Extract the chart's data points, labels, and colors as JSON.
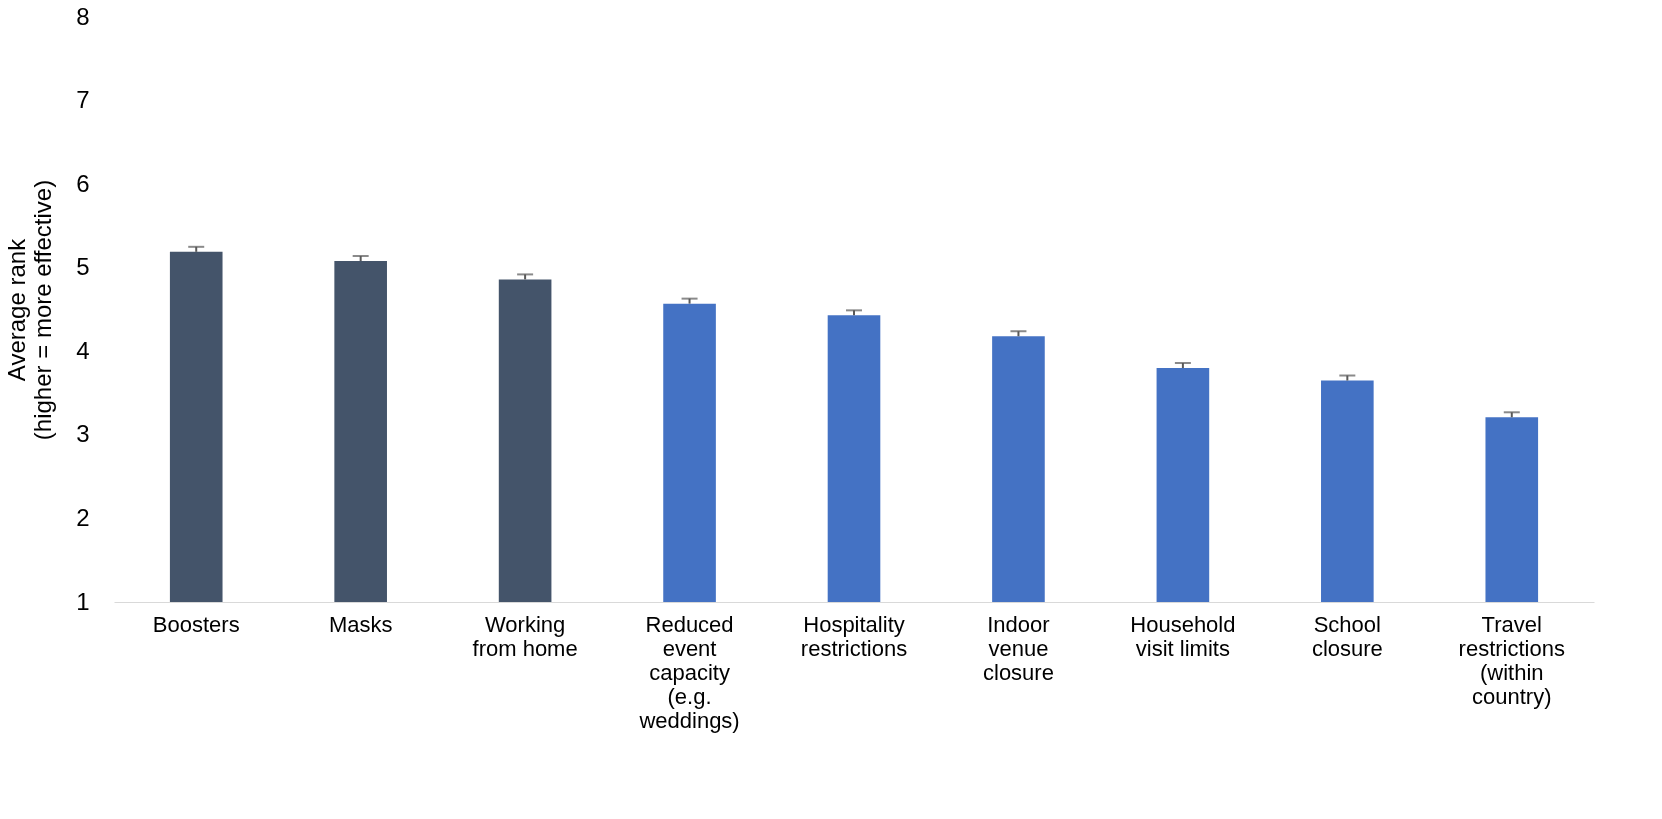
{
  "chart_data": {
    "type": "bar",
    "ylabel": "Average rank\n(higher = more effective)",
    "categories": [
      "Boosters",
      "Masks",
      "Working from home",
      "Reduced event capacity (e.g. weddings)",
      "Hospitality restrictions",
      "Indoor venue closure",
      "Household visit limits",
      "School closure",
      "Travel restrictions (within country)"
    ],
    "values": [
      5.19,
      5.08,
      4.86,
      4.57,
      4.43,
      4.18,
      3.8,
      3.65,
      3.21
    ],
    "errors": [
      0.06,
      0.06,
      0.06,
      0.06,
      0.06,
      0.06,
      0.06,
      0.06,
      0.06
    ],
    "colors": [
      "#44546a",
      "#44546a",
      "#44546a",
      "#4472c4",
      "#4472c4",
      "#4472c4",
      "#4472c4",
      "#4472c4",
      "#4472c4"
    ],
    "ylim": [
      1,
      8
    ],
    "yticks": [
      1,
      2,
      3,
      4,
      5,
      6,
      7,
      8
    ],
    "grid": false
  }
}
